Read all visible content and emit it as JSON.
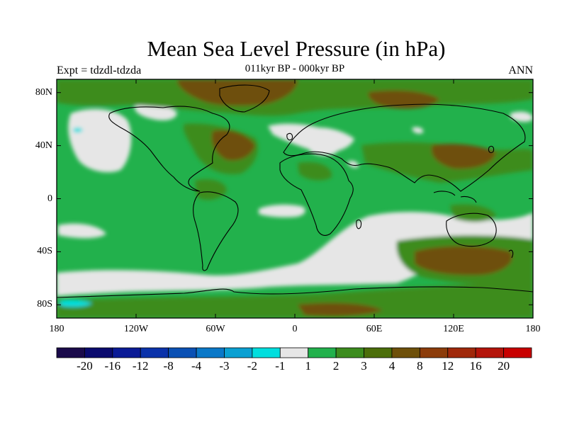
{
  "map": {
    "title": "Mean Sea Level Pressure (in hPa)",
    "subtitle": "011kyr BP - 000kyr BP",
    "left_label": "Expt = tdzdl-tdzda",
    "right_label": "ANN",
    "lon_range": [
      -180,
      180
    ],
    "lat_range": [
      -90,
      90
    ],
    "x_ticks": [
      {
        "value": -180,
        "label": "180"
      },
      {
        "value": -120,
        "label": "120W"
      },
      {
        "value": -60,
        "label": "60W"
      },
      {
        "value": 0,
        "label": "0"
      },
      {
        "value": 60,
        "label": "60E"
      },
      {
        "value": 120,
        "label": "120E"
      },
      {
        "value": 180,
        "label": "180"
      }
    ],
    "y_ticks": [
      {
        "value": 80,
        "label": "80N"
      },
      {
        "value": 40,
        "label": "40N"
      },
      {
        "value": 0,
        "label": "0"
      },
      {
        "value": -40,
        "label": "40S"
      },
      {
        "value": -80,
        "label": "80S"
      }
    ],
    "colorbar": {
      "colors": [
        "#1a0a4a",
        "#0a0a6e",
        "#0a1a96",
        "#0a32aa",
        "#0a50b4",
        "#0a78c8",
        "#0aa0d2",
        "#00dede",
        "#e6e6e6",
        "#22b14c",
        "#3c8c1e",
        "#4b6e0a",
        "#6e500a",
        "#8c3c0a",
        "#a0280a",
        "#b4140a",
        "#c80000"
      ],
      "labels": [
        "-20",
        "-16",
        "-12",
        "-8",
        "-4",
        "-3",
        "-2",
        "-1",
        "1",
        "2",
        "3",
        "4",
        "8",
        "12",
        "16",
        "20"
      ]
    }
  }
}
